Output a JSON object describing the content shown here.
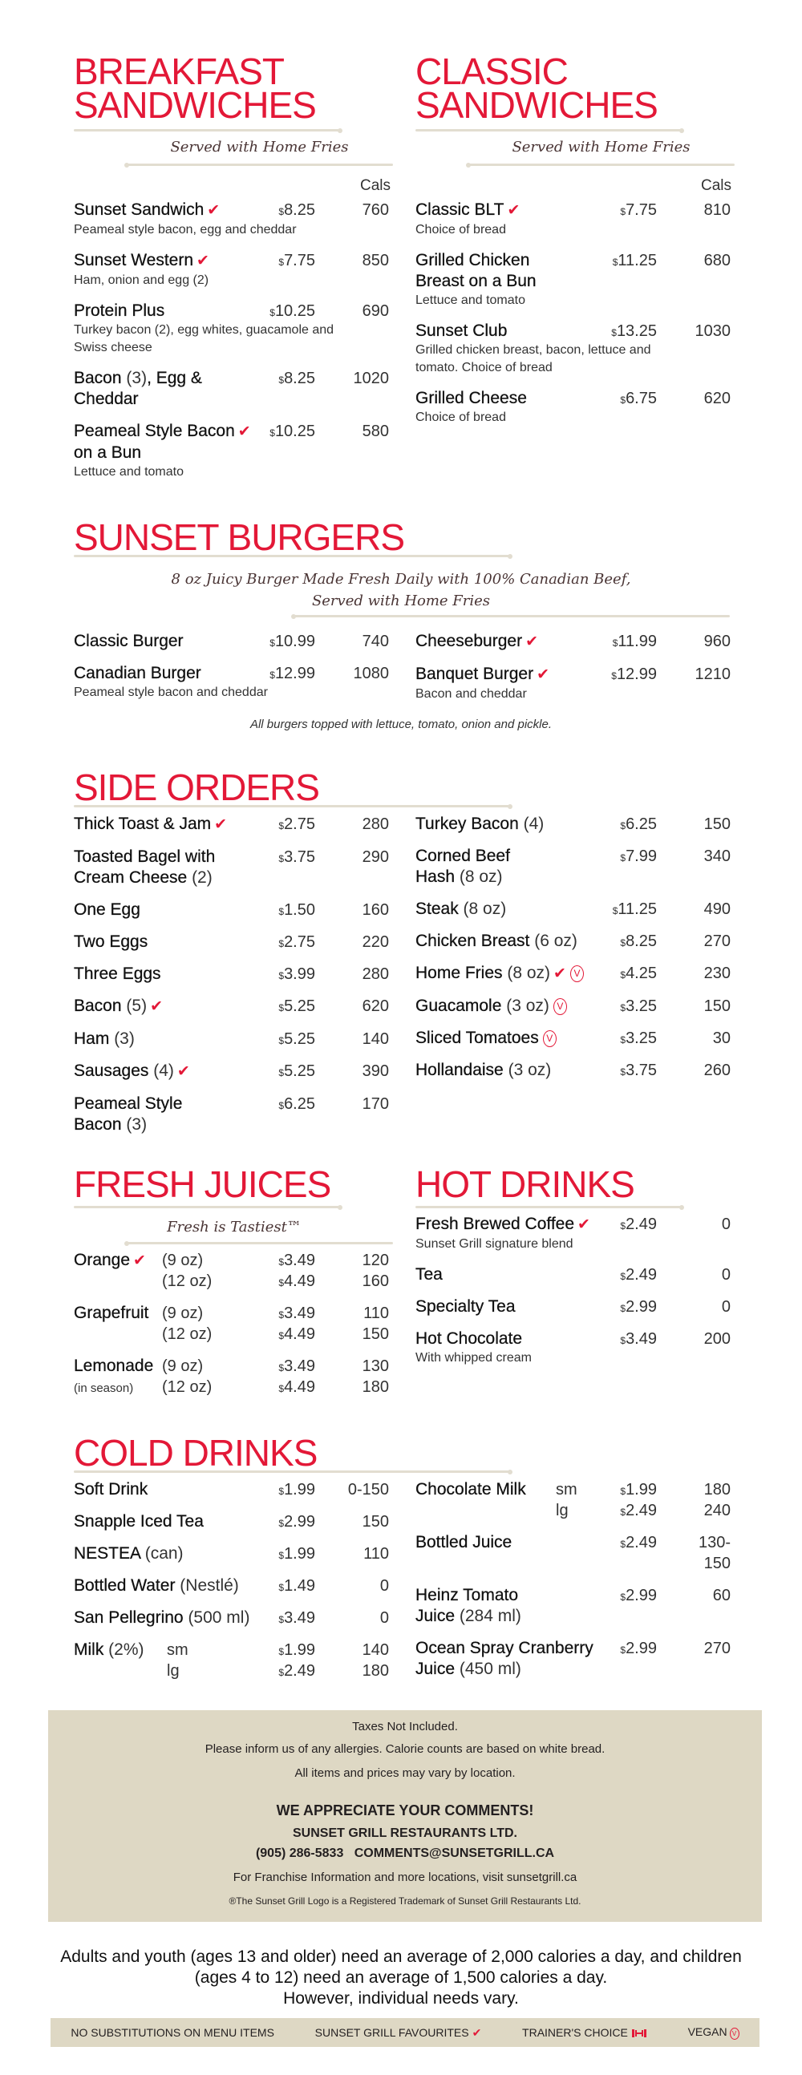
{
  "colors": {
    "accent": "#e31837",
    "panel": "#ded8c4",
    "rule": "#e2ddd0"
  },
  "icons": {
    "favourite": "check-icon",
    "vegan": "vegan-v-icon",
    "trainer": "dumbbell-icon"
  },
  "breakfast": {
    "title": "BREAKFAST\nSANDWICHES",
    "subtitle": "Served with Home Fries",
    "cals_header": "Cals",
    "items": [
      {
        "name": "Sunset Sandwich",
        "fav": true,
        "price": "$8.25",
        "cals": "760",
        "desc": "Peameal style bacon, egg and cheddar"
      },
      {
        "name": "Sunset Western",
        "fav": true,
        "price": "$7.75",
        "cals": "850",
        "desc": "Ham, onion and egg (2)"
      },
      {
        "name": "Protein Plus",
        "price": "$10.25",
        "cals": "690",
        "desc": "Turkey bacon (2), egg whites, guacamole and\nSwiss cheese"
      },
      {
        "name": "Bacon (3), Egg &\nCheddar",
        "price": "$8.25",
        "cals": "1020"
      },
      {
        "name": "Peameal Style Bacon\non a Bun",
        "fav": true,
        "price": "$10.25",
        "cals": "580",
        "desc": "Lettuce and tomato"
      }
    ]
  },
  "classic": {
    "title": "CLASSIC\nSANDWICHES",
    "subtitle": "Served with Home Fries",
    "cals_header": "Cals",
    "items": [
      {
        "name": "Classic BLT",
        "fav": true,
        "price": "$7.75",
        "cals": "810",
        "desc": "Choice of bread"
      },
      {
        "name": "Grilled Chicken\nBreast on a Bun",
        "price": "$11.25",
        "cals": "680",
        "desc": "Lettuce and tomato"
      },
      {
        "name": "Sunset Club",
        "price": "$13.25",
        "cals": "1030",
        "desc": "Grilled chicken breast, bacon, lettuce and\ntomato. Choice of bread"
      },
      {
        "name": "Grilled Cheese",
        "price": "$6.75",
        "cals": "620",
        "desc": "Choice of bread"
      }
    ]
  },
  "burgers": {
    "title": "SUNSET BURGERS",
    "subtitle": "8 oz Juicy Burger Made Fresh Daily with 100% Canadian Beef,\nServed with Home Fries",
    "columns": [
      [
        {
          "name": "Classic Burger",
          "price": "$10.99",
          "cals": "740"
        },
        {
          "name": "Canadian Burger",
          "price": "$12.99",
          "cals": "1080",
          "desc": "Peameal style bacon and cheddar"
        }
      ],
      [
        {
          "name": "Cheeseburger",
          "fav": true,
          "price": "$11.99",
          "cals": "960"
        },
        {
          "name": "Banquet Burger",
          "fav": true,
          "price": "$12.99",
          "cals": "1210",
          "desc": "Bacon and cheddar"
        }
      ]
    ],
    "note": "All burgers topped with lettuce, tomato, onion and pickle."
  },
  "sides": {
    "title": "SIDE ORDERS",
    "columns": [
      [
        {
          "name": "Thick Toast & Jam",
          "fav": true,
          "price": "$2.75",
          "cals": "280"
        },
        {
          "name": "Toasted Bagel with\nCream Cheese (2)",
          "price": "$3.75",
          "cals": "290"
        },
        {
          "name": "One Egg",
          "price": "$1.50",
          "cals": "160"
        },
        {
          "name": "Two Eggs",
          "price": "$2.75",
          "cals": "220"
        },
        {
          "name": "Three Eggs",
          "price": "$3.99",
          "cals": "280"
        },
        {
          "name": "Bacon (5)",
          "fav": true,
          "price": "$5.25",
          "cals": "620"
        },
        {
          "name": "Ham (3)",
          "price": "$5.25",
          "cals": "140"
        },
        {
          "name": "Sausages (4)",
          "fav": true,
          "price": "$5.25",
          "cals": "390"
        },
        {
          "name": "Peameal Style\nBacon (3)",
          "price": "$6.25",
          "cals": "170"
        }
      ],
      [
        {
          "name": "Turkey Bacon (4)",
          "price": "$6.25",
          "cals": "150"
        },
        {
          "name": "Corned Beef\nHash (8 oz)",
          "price": "$7.99",
          "cals": "340"
        },
        {
          "name": "Steak (8 oz)",
          "price": "$11.25",
          "cals": "490"
        },
        {
          "name": "Chicken Breast (6 oz)",
          "price": "$8.25",
          "cals": "270"
        },
        {
          "name": "Home Fries (8 oz)",
          "fav": true,
          "vegan": true,
          "price": "$4.25",
          "cals": "230"
        },
        {
          "name": "Guacamole (3 oz)",
          "vegan": true,
          "price": "$3.25",
          "cals": "150"
        },
        {
          "name": "Sliced Tomatoes",
          "vegan": true,
          "price": "$3.25",
          "cals": "30"
        },
        {
          "name": "Hollandaise (3 oz)",
          "price": "$3.75",
          "cals": "260"
        }
      ]
    ]
  },
  "juices": {
    "title": "FRESH JUICES",
    "subtitle": "Fresh is Tastiest™",
    "items": [
      {
        "name": "Orange",
        "fav": true,
        "sizes": [
          {
            "label": "(9 oz)",
            "price": "$3.49",
            "cals": "120"
          },
          {
            "label": "(12 oz)",
            "price": "$4.49",
            "cals": "160"
          }
        ]
      },
      {
        "name": "Grapefruit",
        "sizes": [
          {
            "label": "(9 oz)",
            "price": "$3.49",
            "cals": "110"
          },
          {
            "label": "(12 oz)",
            "price": "$4.49",
            "cals": "150"
          }
        ]
      },
      {
        "name": "Lemonade",
        "name_note": "(in season)",
        "sizes": [
          {
            "label": "(9 oz)",
            "price": "$3.49",
            "cals": "130"
          },
          {
            "label": "(12 oz)",
            "price": "$4.49",
            "cals": "180"
          }
        ]
      }
    ]
  },
  "hot": {
    "title": "HOT DRINKS",
    "items": [
      {
        "name": "Fresh Brewed Coffee",
        "fav": true,
        "price": "$2.49",
        "cals": "0",
        "desc": "Sunset Grill signature blend"
      },
      {
        "name": "Tea",
        "price": "$2.49",
        "cals": "0"
      },
      {
        "name": "Specialty Tea",
        "price": "$2.99",
        "cals": "0"
      },
      {
        "name": "Hot Chocolate",
        "price": "$3.49",
        "cals": "200",
        "desc": "With whipped cream"
      }
    ]
  },
  "cold": {
    "title": "COLD DRINKS",
    "columns": [
      [
        {
          "name": "Soft Drink",
          "price": "$1.99",
          "cals": "0-150"
        },
        {
          "name": "Snapple Iced Tea",
          "price": "$2.99",
          "cals": "150"
        },
        {
          "name": "NESTEA (can)",
          "price": "$1.99",
          "cals": "110"
        },
        {
          "name": "Bottled Water (Nestlé)",
          "price": "$1.49",
          "cals": "0"
        },
        {
          "name": "San Pellegrino (500 ml)",
          "price": "$3.49",
          "cals": "0"
        },
        {
          "name": "Milk (2%)",
          "sizes": [
            {
              "label": "sm",
              "price": "$1.99",
              "cals": "140"
            },
            {
              "label": "lg",
              "price": "$2.49",
              "cals": "180"
            }
          ]
        }
      ],
      [
        {
          "name": "Chocolate Milk",
          "sizes": [
            {
              "label": "sm",
              "price": "$1.99",
              "cals": "180"
            },
            {
              "label": "lg",
              "price": "$2.49",
              "cals": "240"
            }
          ]
        },
        {
          "name": "Bottled Juice",
          "price": "$2.49",
          "cals": "130-\n150"
        },
        {
          "name": "Heinz Tomato\nJuice (284 ml)",
          "price": "$2.99",
          "cals": "60"
        },
        {
          "name": "Ocean Spray Cranberry\nJuice (450 ml)",
          "price": "$2.99",
          "cals": "270"
        }
      ]
    ]
  },
  "footer": {
    "taxes": "Taxes Not Included.",
    "allergies": "Please inform us of any allergies. Calorie counts are based on white bread.",
    "vary": "All items and prices may vary by location.",
    "comments_heading": "WE APPRECIATE YOUR COMMENTS!",
    "company": "SUNSET GRILL RESTAURANTS LTD.",
    "contact": "(905) 286-5833   COMMENTS@SUNSETGRILL.CA",
    "franchise": "For Franchise Information and more locations, visit sunsetgrill.ca",
    "trademark": "®The Sunset Grill Logo is a Registered Trademark of Sunset Grill Restaurants Ltd.",
    "calorie_note": "Adults and youth (ages 13 and older) need an average of 2,000 calories a day, and children (ages 4 to 12) need an average of 1,500 calories a day.\nHowever, individual needs vary."
  },
  "legend": {
    "no_subs": "NO SUBSTITUTIONS ON MENU ITEMS",
    "favourites": "SUNSET GRILL FAVOURITES",
    "trainers": "TRAINER'S CHOICE",
    "vegan": "VEGAN"
  }
}
